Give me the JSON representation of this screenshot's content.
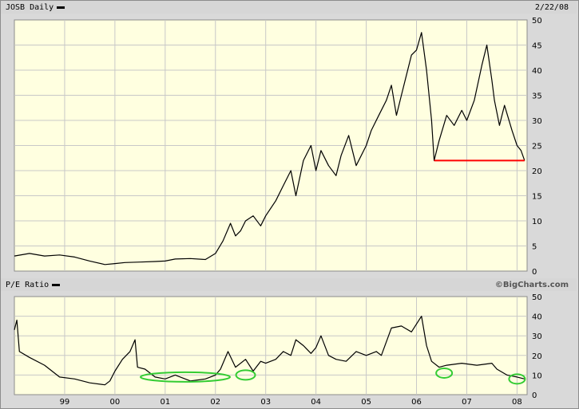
{
  "header": {
    "price_label": "JOSB Daily",
    "date": "2/22/08",
    "pe_label": "P/E Ratio",
    "credit": "©BigCharts.com"
  },
  "colors": {
    "plot_bg": "#ffffe0",
    "grid": "#c8c8c8",
    "line": "#000000",
    "support_line": "#ff0000",
    "highlight": "#33cc33"
  },
  "chart_data": [
    {
      "type": "line",
      "name": "price",
      "x_ticks": [],
      "ylim": [
        0,
        50
      ],
      "y_ticks": [
        0,
        5,
        10,
        15,
        20,
        25,
        30,
        35,
        40,
        45,
        50
      ],
      "grid": true,
      "series": [
        {
          "x": [
            1998.0,
            1998.3,
            1998.6,
            1998.9,
            1999.2,
            1999.5,
            1999.8,
            2000.0,
            2000.2,
            2000.5,
            2000.8,
            2001.0,
            2001.2,
            2001.5,
            2001.8,
            2002.0,
            2002.15,
            2002.3,
            2002.4,
            2002.5,
            2002.6,
            2002.75,
            2002.9,
            2003.0,
            2003.2,
            2003.35,
            2003.5,
            2003.6,
            2003.75,
            2003.9,
            2004.0,
            2004.1,
            2004.25,
            2004.4,
            2004.5,
            2004.65,
            2004.8,
            2005.0,
            2005.1,
            2005.25,
            2005.4,
            2005.5,
            2005.6,
            2005.7,
            2005.8,
            2005.9,
            2006.0,
            2006.1,
            2006.2,
            2006.3,
            2006.35,
            2006.45,
            2006.6,
            2006.75,
            2006.9,
            2007.0,
            2007.15,
            2007.3,
            2007.4,
            2007.5,
            2007.55,
            2007.65,
            2007.75,
            2007.9,
            2008.0,
            2008.08,
            2008.15
          ],
          "y": [
            3,
            3.5,
            3,
            3.2,
            2.8,
            2,
            1.3,
            1.5,
            1.7,
            1.8,
            1.9,
            2,
            2.4,
            2.5,
            2.3,
            3.5,
            6,
            9.5,
            7,
            8,
            10,
            11,
            9,
            11,
            14,
            17,
            20,
            15,
            22,
            25,
            20,
            24,
            21,
            19,
            23,
            27,
            21,
            25,
            28,
            31,
            34,
            37,
            31,
            35,
            39,
            43,
            44,
            47.5,
            40,
            30,
            22,
            26,
            31,
            29,
            32,
            30,
            34,
            41,
            45,
            38,
            34,
            29,
            33,
            28,
            25,
            24,
            22
          ]
        }
      ],
      "annotations": [
        {
          "type": "hline",
          "y": 22,
          "x_from": 2006.35,
          "x_to": 2008.15
        }
      ]
    },
    {
      "type": "line",
      "name": "pe",
      "x_ticks": [
        "99",
        "00",
        "01",
        "02",
        "03",
        "04",
        "05",
        "06",
        "07",
        "08"
      ],
      "ylim": [
        0,
        50
      ],
      "y_ticks": [
        0,
        10,
        20,
        30,
        40,
        50
      ],
      "grid": true,
      "series": [
        {
          "x": [
            1998.0,
            1998.05,
            1998.1,
            1998.3,
            1998.6,
            1998.9,
            1999.2,
            1999.5,
            1999.8,
            1999.9,
            2000.0,
            2000.15,
            2000.3,
            2000.4,
            2000.45,
            2000.6,
            2000.8,
            2001.0,
            2001.2,
            2001.5,
            2001.8,
            2002.0,
            2002.1,
            2002.25,
            2002.4,
            2002.6,
            2002.75,
            2002.9,
            2003.0,
            2003.2,
            2003.35,
            2003.5,
            2003.6,
            2003.75,
            2003.9,
            2004.0,
            2004.1,
            2004.25,
            2004.4,
            2004.6,
            2004.8,
            2005.0,
            2005.2,
            2005.3,
            2005.5,
            2005.7,
            2005.9,
            2006.0,
            2006.1,
            2006.2,
            2006.3,
            2006.45,
            2006.6,
            2006.9,
            2007.2,
            2007.5,
            2007.6,
            2007.8,
            2008.0,
            2008.15
          ],
          "y": [
            33,
            38,
            22,
            19,
            15,
            9,
            8,
            6,
            5,
            7,
            12,
            18,
            22,
            28,
            14,
            13,
            9,
            8,
            10,
            7,
            8,
            10,
            13,
            22,
            14,
            18,
            12,
            17,
            16,
            18,
            22,
            20,
            28,
            25,
            21,
            24,
            30,
            20,
            18,
            17,
            22,
            20,
            22,
            20,
            34,
            35,
            32,
            36,
            40,
            25,
            17,
            14,
            15,
            16,
            15,
            16,
            13,
            10,
            9,
            8
          ]
        }
      ],
      "annotations": [
        {
          "type": "ellipse",
          "cx": 2001.4,
          "cy": 9
        },
        {
          "type": "ellipse",
          "cx": 2002.6,
          "cy": 10
        },
        {
          "type": "ellipse",
          "cx": 2006.55,
          "cy": 11
        },
        {
          "type": "ellipse",
          "cx": 2008.0,
          "cy": 8
        }
      ]
    }
  ]
}
